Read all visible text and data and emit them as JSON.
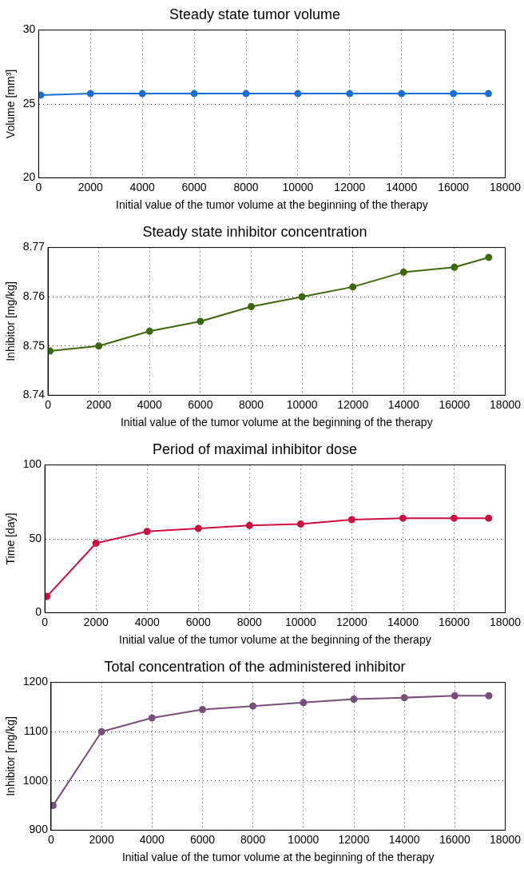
{
  "chart_data": [
    {
      "type": "line",
      "title": "Steady state tumor volume",
      "xlabel": "Initial value of the tumor volume at the beginning of the therapy",
      "ylabel": "Volume [mm³]",
      "x": [
        80,
        2000,
        4000,
        6000,
        8000,
        10000,
        12000,
        14000,
        16000,
        17350
      ],
      "series": [
        {
          "color": "#1a6fd6",
          "values": [
            25.6,
            25.7,
            25.7,
            25.7,
            25.7,
            25.7,
            25.7,
            25.7,
            25.7,
            25.7
          ]
        }
      ],
      "xlim": [
        0,
        18000
      ],
      "xticks": [
        0,
        2000,
        4000,
        6000,
        8000,
        10000,
        12000,
        14000,
        16000,
        18000
      ],
      "ylim": [
        20,
        30
      ],
      "yticks": [
        20,
        25,
        30
      ],
      "grid": true,
      "marker": "circle"
    },
    {
      "type": "line",
      "title": "Steady state inhibitor concentration",
      "xlabel": "Initial value of the tumor volume at the beginning of the therapy",
      "ylabel": "Inhibitor [mg/kg]",
      "x": [
        80,
        2000,
        4000,
        6000,
        8000,
        10000,
        12000,
        14000,
        16000,
        17350
      ],
      "series": [
        {
          "color": "#3b6a0c",
          "values": [
            8.749,
            8.75,
            8.753,
            8.755,
            8.758,
            8.76,
            8.762,
            8.765,
            8.766,
            8.768
          ]
        }
      ],
      "xlim": [
        0,
        18000
      ],
      "xticks": [
        0,
        2000,
        4000,
        6000,
        8000,
        10000,
        12000,
        14000,
        16000,
        18000
      ],
      "ylim": [
        8.74,
        8.77
      ],
      "yticks": [
        8.74,
        8.75,
        8.76,
        8.77
      ],
      "grid": true,
      "marker": "circle"
    },
    {
      "type": "line",
      "title": "Period of maximal inhibitor dose",
      "xlabel": "Initial value of the tumor volume at the beginning of the therapy",
      "ylabel": "Time [day]",
      "x": [
        80,
        2000,
        4000,
        6000,
        8000,
        10000,
        12000,
        14000,
        16000,
        17350
      ],
      "series": [
        {
          "color": "#cc0f3f",
          "values": [
            11,
            47,
            55,
            57,
            59,
            60,
            63,
            64,
            64,
            64
          ]
        }
      ],
      "xlim": [
        0,
        18000
      ],
      "xticks": [
        0,
        2000,
        4000,
        6000,
        8000,
        10000,
        12000,
        14000,
        16000,
        18000
      ],
      "ylim": [
        0,
        100
      ],
      "yticks": [
        0,
        50,
        100
      ],
      "grid": true,
      "marker": "circle"
    },
    {
      "type": "line",
      "title": "Total concentration of the administered inhibitor",
      "xlabel": "Initial value of the tumor volume at the beginning of the therapy",
      "ylabel": "Inhibitor [mg/kg]",
      "x": [
        80,
        2000,
        4000,
        6000,
        8000,
        10000,
        12000,
        14000,
        16000,
        17350
      ],
      "series": [
        {
          "color": "#7a4e7a",
          "values": [
            950,
            1100,
            1128,
            1145,
            1152,
            1159,
            1166,
            1169,
            1173,
            1173
          ]
        }
      ],
      "xlim": [
        0,
        18000
      ],
      "xticks": [
        0,
        2000,
        4000,
        6000,
        8000,
        10000,
        12000,
        14000,
        16000,
        18000
      ],
      "ylim": [
        900,
        1200
      ],
      "yticks": [
        900,
        1000,
        1100,
        1200
      ],
      "grid": true,
      "marker": "circle"
    }
  ]
}
